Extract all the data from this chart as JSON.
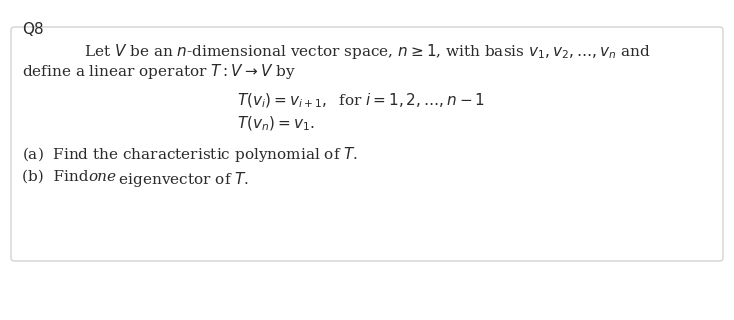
{
  "title": "Q8",
  "bg_color": "#ffffff",
  "box_facecolor": "#ffffff",
  "box_edgecolor": "#c8c8c8",
  "text_color": "#2a2a2a",
  "line1": "Let $V$ be an $n$-dimensional vector space, $n \\geq 1$, with basis $v_1, v_2, \\ldots, v_n$ and",
  "line2": "define a linear operator $T : V \\rightarrow V$ by",
  "eq1": "$T(v_i) = v_{i+1},\\;$ for $i = 1, 2, \\ldots, n-1$",
  "eq2": "$T(v_n) = v_1.$",
  "part_a_pre": "(a)  Find the characteristic polynomial of ",
  "part_a_T": "$T$.",
  "part_b_pre": "(b)  Find ",
  "part_b_one": "one",
  "part_b_post": " eigenvector of $T$.",
  "title_fontsize": 11,
  "body_fontsize": 11,
  "eq_fontsize": 11
}
